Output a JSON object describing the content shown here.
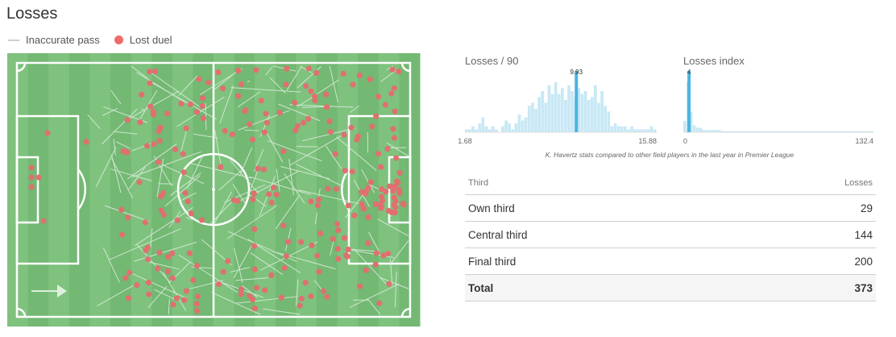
{
  "page": {
    "title": "Losses"
  },
  "legend": {
    "pass_label": "Inaccurate pass",
    "duel_label": "Lost duel"
  },
  "colors": {
    "pitch_stripe_light": "#7ec27e",
    "pitch_stripe_dark": "#73b873",
    "lines": "#ffffff",
    "duel": "#e07070",
    "pass": "#dfeedf",
    "hist_bar": "#c8e8f5",
    "hist_highlight": "#4ab4e0"
  },
  "chart_data": [
    {
      "type": "bar",
      "title": "Losses / 90",
      "xlim": [
        1.68,
        15.88
      ],
      "tick_labels": [
        "1.68",
        "15.88"
      ],
      "highlight_value": 9.93,
      "highlight_label": "9.93",
      "values": [
        1,
        1,
        2,
        1,
        3,
        5,
        2,
        1,
        2,
        1,
        0,
        2,
        4,
        3,
        1,
        3,
        6,
        4,
        5,
        9,
        10,
        8,
        12,
        14,
        10,
        16,
        13,
        17,
        13,
        15,
        11,
        16,
        14,
        12,
        15,
        13,
        14,
        11,
        12,
        16,
        10,
        14,
        9,
        7,
        2,
        3,
        2,
        2,
        2,
        1,
        2,
        1,
        1,
        1,
        1,
        1,
        2,
        1
      ]
    },
    {
      "type": "bar",
      "title": "Losses index",
      "xlim": [
        0,
        132.4
      ],
      "tick_labels": [
        "0",
        "132.4"
      ],
      "highlight_value": 4,
      "highlight_label": "4",
      "values": [
        5,
        22,
        9,
        3,
        2,
        2,
        1,
        1,
        1,
        1,
        1,
        1,
        0.5,
        0.5,
        0.5,
        0.5,
        0.5,
        0.5,
        0.5,
        0.5,
        0.5,
        0.5,
        0.5,
        0.5,
        0.5,
        0.5,
        0.5,
        0.5,
        0.5,
        0.5,
        0.5,
        0.5,
        0.5,
        0.5,
        0.5,
        0.5,
        0.5,
        0.5,
        0.5,
        0.5,
        0.5,
        0.5,
        0.5,
        0.5,
        0.5,
        0.5,
        0.5,
        0.5,
        0.5,
        0.5,
        0.5,
        0.5,
        0.5,
        0.5,
        0.5,
        0.5,
        0.5,
        0.5,
        0.5,
        0.5
      ]
    },
    {
      "type": "table",
      "columns": [
        "Third",
        "Losses"
      ],
      "rows": [
        {
          "label": "Own third",
          "value": "29"
        },
        {
          "label": "Central third",
          "value": "144"
        },
        {
          "label": "Final third",
          "value": "200"
        }
      ],
      "total": {
        "label": "Total",
        "value": "373"
      }
    }
  ],
  "note": "K. Havertz stats compared to other field players in the last year in Premier League"
}
